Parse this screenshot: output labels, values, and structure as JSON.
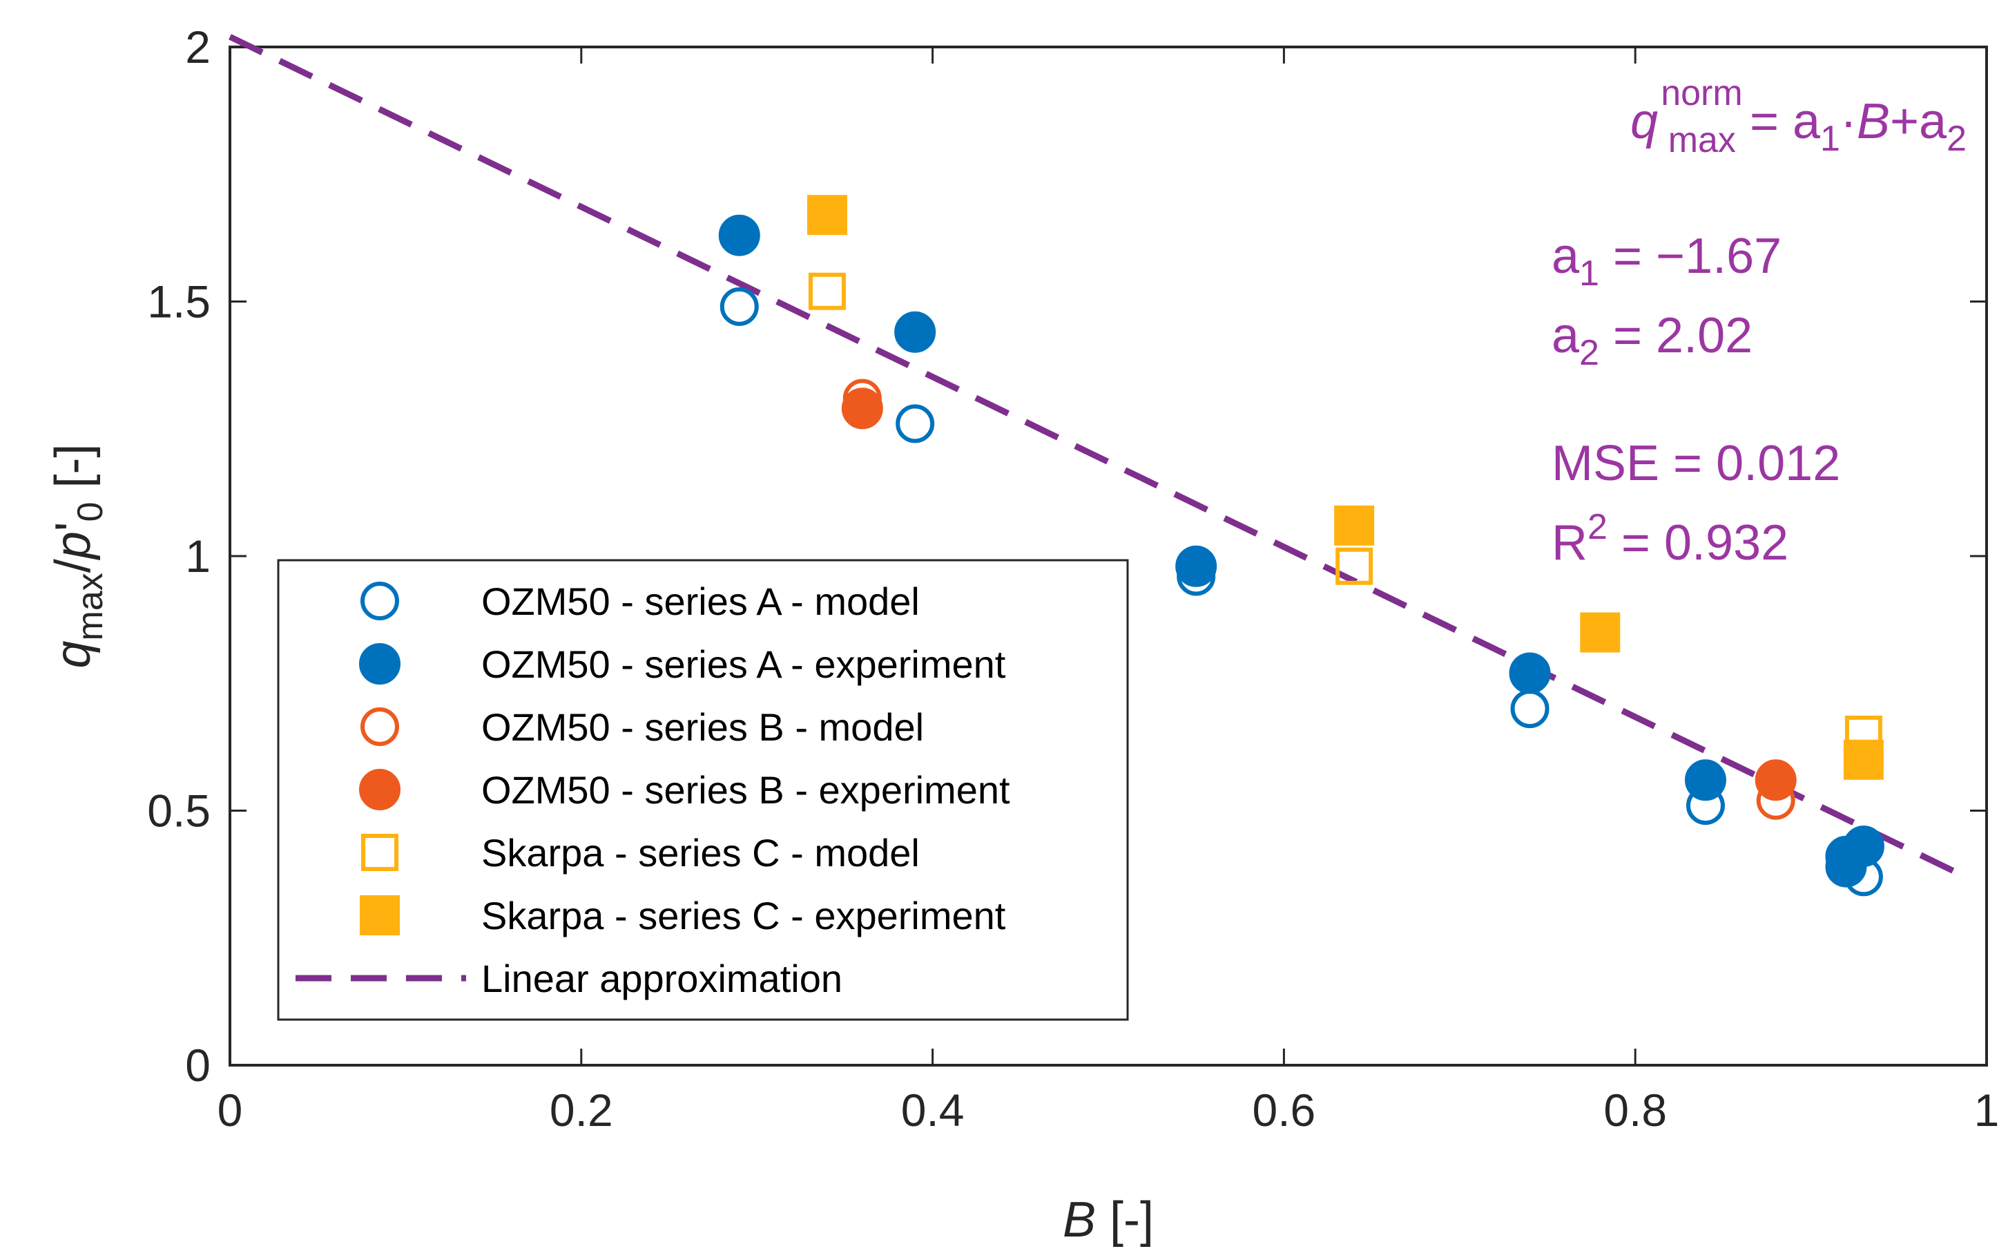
{
  "chart_data": {
    "type": "scatter",
    "xlabel": "B [-]",
    "ylabel": "q_max/p'_0 [-]",
    "xlim": [
      0,
      1
    ],
    "ylim": [
      0,
      2
    ],
    "xticks": [
      0,
      0.2,
      0.4,
      0.6,
      0.8,
      1
    ],
    "yticks": [
      0,
      0.5,
      1,
      1.5,
      2
    ],
    "xtick_labels": [
      "0",
      "0.2",
      "0.4",
      "0.6",
      "0.8",
      "1"
    ],
    "ytick_labels": [
      "0",
      "0.5",
      "1",
      "1.5",
      "2"
    ],
    "legend_location": "center-left",
    "grid": false,
    "series": [
      {
        "name": "OZM50 - series A - model",
        "marker": "circle",
        "filled": false,
        "color": "#0072BD",
        "x": [
          0.29,
          0.39,
          0.55,
          0.74,
          0.84,
          0.92,
          0.93
        ],
        "y": [
          1.49,
          1.26,
          0.96,
          0.7,
          0.51,
          0.4,
          0.37
        ]
      },
      {
        "name": "OZM50 - series A - experiment",
        "marker": "circle",
        "filled": true,
        "color": "#0072BD",
        "x": [
          0.29,
          0.39,
          0.55,
          0.74,
          0.84,
          0.92,
          0.92,
          0.93
        ],
        "y": [
          1.63,
          1.44,
          0.98,
          0.77,
          0.56,
          0.41,
          0.39,
          0.43
        ]
      },
      {
        "name": "OZM50 - series B - model",
        "marker": "circle",
        "filled": false,
        "color": "#EE5A1E",
        "x": [
          0.36,
          0.88
        ],
        "y": [
          1.31,
          0.52
        ]
      },
      {
        "name": "OZM50 - series B - experiment",
        "marker": "circle",
        "filled": true,
        "color": "#EE5A1E",
        "x": [
          0.36,
          0.88
        ],
        "y": [
          1.29,
          0.56
        ]
      },
      {
        "name": "Skarpa - series C - model",
        "marker": "square",
        "filled": false,
        "color": "#FFB20F",
        "x": [
          0.34,
          0.64,
          0.93
        ],
        "y": [
          1.52,
          0.98,
          0.65
        ]
      },
      {
        "name": "Skarpa - series C - experiment",
        "marker": "square",
        "filled": true,
        "color": "#FFB20F",
        "x": [
          0.34,
          0.64,
          0.78,
          0.93
        ],
        "y": [
          1.67,
          1.06,
          0.85,
          0.6
        ]
      }
    ],
    "fit_line": {
      "name": "Linear approximation",
      "color": "#7E2F8E",
      "slope": -1.67,
      "intercept": 2.02,
      "x_range": [
        0,
        0.99
      ]
    },
    "annotations": {
      "equation": {
        "q": "q",
        "sup": "norm",
        "sub": "max",
        "rhs_1": " = a",
        "rhs_sub1": "1",
        "rhs_2": "·",
        "rhs_B": "B",
        "rhs_3": "+a",
        "rhs_sub2": "2"
      },
      "a1": {
        "a": "a",
        "sub": "1",
        "rest": " = −1.67"
      },
      "a2": {
        "a": "a",
        "sub": "2",
        "rest": " = 2.02"
      },
      "mse": "MSE = 0.012",
      "r2": {
        "r": "R",
        "sup": "2",
        "rest": " = 0.932"
      },
      "color": "#9B36A2"
    }
  }
}
